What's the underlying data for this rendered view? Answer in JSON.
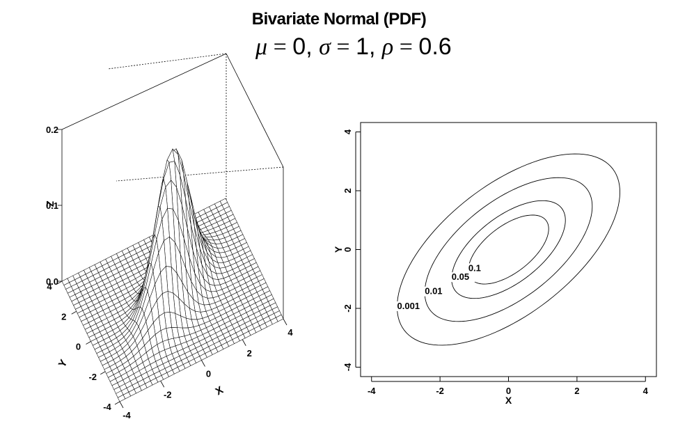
{
  "title": "Bivariate Normal (PDF)",
  "parameters": [
    {
      "symbol": "μ",
      "value": "0"
    },
    {
      "symbol": "σ",
      "value": "1"
    },
    {
      "symbol": "ρ",
      "value": "0.6"
    }
  ],
  "chart_data": [
    {
      "type": "surface",
      "function": "bivariate normal density",
      "mu": 0,
      "sigma": 1,
      "rho": 0.6,
      "xlim": [
        -4,
        4
      ],
      "ylim": [
        -4,
        4
      ],
      "zlim": [
        0,
        0.2
      ],
      "xlabel": "X",
      "ylabel": "Y",
      "zlabel": "Z",
      "x_ticks": [
        "-4",
        "-2",
        "0",
        "2",
        "4"
      ],
      "y_ticks": [
        "-4",
        "-2",
        "0",
        "2",
        "4"
      ],
      "z_ticks": [
        "0.0",
        "0.1",
        "0.2"
      ],
      "grid_lines": 31
    },
    {
      "type": "contour",
      "function": "bivariate normal density",
      "mu": 0,
      "sigma": 1,
      "rho": 0.6,
      "xlim": [
        -4,
        4
      ],
      "ylim": [
        -4,
        4
      ],
      "xlabel": "X",
      "ylabel": "Y",
      "x_ticks": [
        "-4",
        "-2",
        "0",
        "2",
        "4"
      ],
      "y_ticks": [
        "-4",
        "-2",
        "0",
        "2",
        "4"
      ],
      "levels": [
        0.001,
        0.01,
        0.05,
        0.1
      ],
      "level_labels": [
        "0.001",
        "0.01",
        "0.05",
        "0.1"
      ]
    }
  ]
}
